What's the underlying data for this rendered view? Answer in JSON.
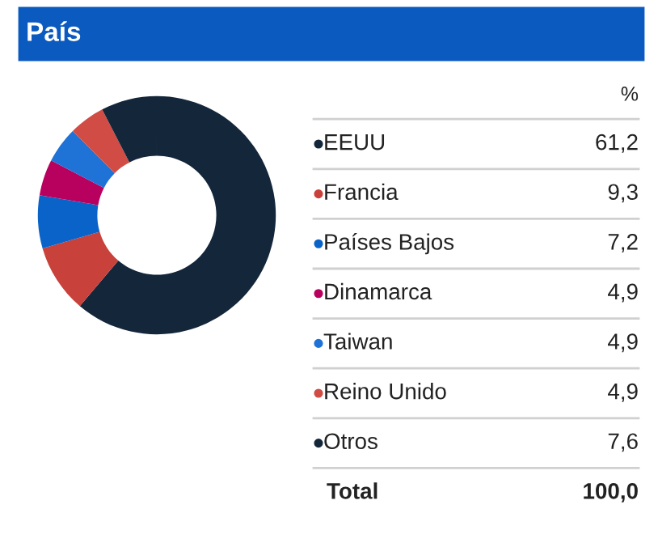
{
  "chart_data": {
    "type": "donut",
    "title": "País",
    "categories": [
      "EEUU",
      "Francia",
      "Países Bajos",
      "Dinamarca",
      "Taiwan",
      "Reino Unido",
      "Otros"
    ],
    "values": [
      61.2,
      9.3,
      7.2,
      4.9,
      4.9,
      4.9,
      7.6
    ],
    "colors": [
      "#14263a",
      "#c8413a",
      "#0a63c8",
      "#b8005f",
      "#1f72d6",
      "#d04c44",
      "#14263a"
    ],
    "value_labels": [
      "61,2",
      "9,3",
      "7,2",
      "4,9",
      "4,9",
      "4,9",
      "7,6"
    ],
    "annotations": [
      "%",
      "Total",
      "100,0"
    ],
    "legend": "right"
  }
}
